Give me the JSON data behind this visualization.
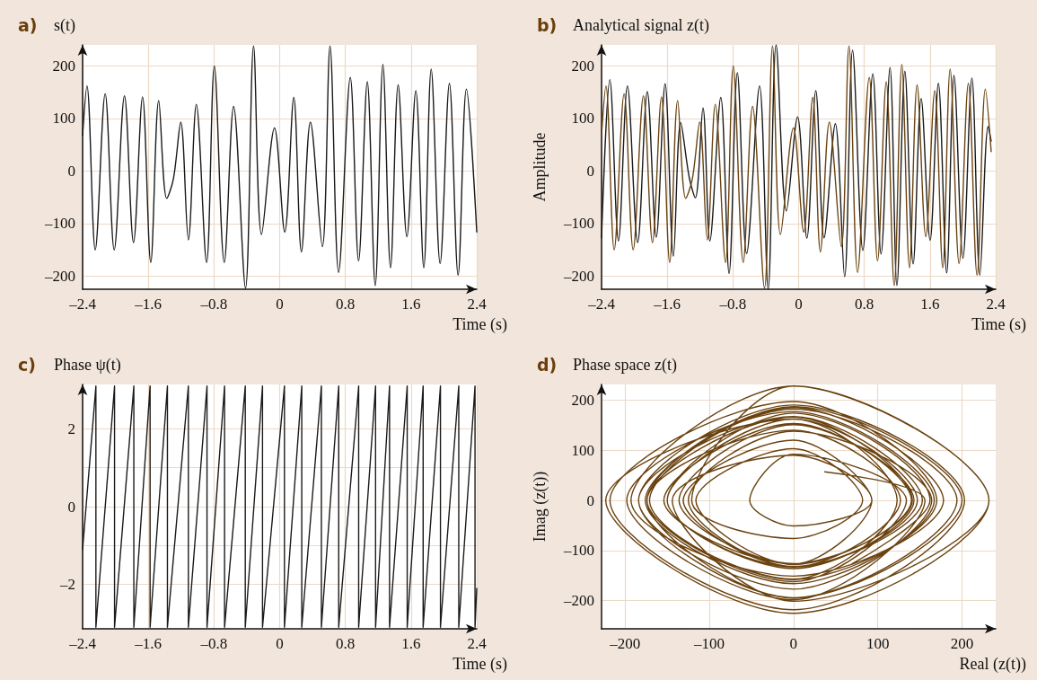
{
  "chart_data": [
    {
      "type": "line",
      "title": "s(t)",
      "annotations": [
        "a)"
      ],
      "xlabel": "Time (s)",
      "grid": true,
      "marker": "none",
      "line_style": "solid",
      "xlim": [
        -2.4,
        2.4
      ],
      "xticks": [
        {
          "value": -2.4,
          "label": "–2.4"
        },
        {
          "value": -1.6,
          "label": "–1.6"
        },
        {
          "value": -0.8,
          "label": "–0.8"
        },
        0,
        0.8,
        1.6,
        2.4
      ],
      "ylim": [
        -225,
        240
      ],
      "yticks": [
        {
          "value": -200,
          "label": "–200"
        },
        {
          "value": -100,
          "label": "–100"
        },
        0,
        100,
        200
      ],
      "series": [
        {
          "color": "#1a1a1a",
          "x": [
            -2.4,
            -2.347,
            -2.246,
            -2.125,
            -2.015,
            -1.89,
            -1.78,
            -1.67,
            -1.57,
            -1.473,
            -1.375,
            -1.294,
            -1.205,
            -1.112,
            -1.015,
            -0.89,
            -0.796,
            -0.675,
            -0.561,
            -0.416,
            -0.318,
            -0.221,
            -0.063,
            0.062,
            0.172,
            0.265,
            0.374,
            0.52,
            0.613,
            0.718,
            0.86,
            0.961,
            1.067,
            1.164,
            1.257,
            1.35,
            1.443,
            1.549,
            1.658,
            1.755,
            1.845,
            1.954,
            2.067,
            2.173,
            2.274,
            2.4
          ],
          "values": [
            68,
            162,
            -150,
            147,
            -150,
            143,
            -136,
            141,
            -174,
            134,
            -52,
            -15,
            93,
            -131,
            127,
            -174,
            200,
            -174,
            123,
            -223,
            238,
            -121,
            82,
            -116,
            140,
            -154,
            93,
            -144,
            238,
            -193,
            178,
            -171,
            170,
            -218,
            203,
            -184,
            164,
            -125,
            153,
            -184,
            194,
            -176,
            167,
            -198,
            156,
            -116
          ]
        }
      ]
    },
    {
      "type": "line",
      "title": "Analytical signal z(t)",
      "annotations": [
        "b)"
      ],
      "xlabel": "Time (s)",
      "ylabel": "Amplitude",
      "grid": true,
      "marker": "none",
      "line_style": "solid",
      "xlim": [
        -2.4,
        2.4
      ],
      "xticks": [
        {
          "value": -2.4,
          "label": "–2.4"
        },
        {
          "value": -1.6,
          "label": "–1.6"
        },
        {
          "value": -0.8,
          "label": "–0.8"
        },
        0,
        0.8,
        1.6,
        2.4
      ],
      "ylim": [
        -225,
        240
      ],
      "yticks": [
        {
          "value": -200,
          "label": "–200"
        },
        {
          "value": -100,
          "label": "–100"
        },
        0,
        100,
        200
      ],
      "series": [
        {
          "color": "#1a1a1a",
          "x": [
            -2.4,
            -2.299,
            -2.194,
            -2.085,
            -1.96,
            -1.843,
            -1.734,
            -1.626,
            -1.525,
            -1.436,
            -1.331,
            -1.258,
            -1.165,
            -1.081,
            -0.948,
            -0.847,
            -0.746,
            -0.633,
            -0.476,
            -0.371,
            -0.274,
            -0.149,
            -0.013,
            0.1,
            0.209,
            0.31,
            0.447,
            0.56,
            0.657,
            0.782,
            0.903,
            1.004,
            1.113,
            1.197,
            1.294,
            1.395,
            1.492,
            1.601,
            1.702,
            1.803,
            1.892,
            2.001,
            2.11,
            2.207,
            2.308,
            2.345
          ],
          "values": [
            -127,
            174,
            -133,
            162,
            -136,
            151,
            -126,
            166,
            -162,
            92,
            -13,
            -51,
            120,
            -133,
            140,
            -195,
            187,
            -157,
            162,
            -225,
            240,
            -76,
            103,
            -128,
            153,
            -127,
            90,
            -201,
            230,
            -151,
            185,
            -158,
            197,
            -218,
            190,
            -177,
            138,
            -132,
            167,
            -194,
            182,
            -166,
            177,
            -198,
            85,
            57
          ]
        },
        {
          "color": "#6b4310",
          "x": [
            -2.4,
            -2.347,
            -2.246,
            -2.125,
            -2.015,
            -1.89,
            -1.78,
            -1.67,
            -1.57,
            -1.473,
            -1.375,
            -1.294,
            -1.205,
            -1.112,
            -1.015,
            -0.89,
            -0.796,
            -0.675,
            -0.561,
            -0.416,
            -0.318,
            -0.221,
            -0.063,
            0.062,
            0.172,
            0.265,
            0.374,
            0.52,
            0.613,
            0.718,
            0.86,
            0.961,
            1.067,
            1.164,
            1.257,
            1.35,
            1.443,
            1.549,
            1.658,
            1.755,
            1.845,
            1.954,
            2.067,
            2.173,
            2.274,
            2.345
          ],
          "values": [
            69,
            162,
            -150,
            147,
            -150,
            143,
            -136,
            141,
            -174,
            134,
            -52,
            -15,
            93,
            -131,
            127,
            -174,
            200,
            -174,
            123,
            -223,
            238,
            -121,
            82,
            -116,
            140,
            -154,
            93,
            -144,
            238,
            -193,
            178,
            -171,
            170,
            -218,
            203,
            -184,
            164,
            -125,
            153,
            -184,
            194,
            -176,
            167,
            -198,
            156,
            37
          ]
        }
      ]
    },
    {
      "type": "line",
      "title": "Phase ψ(t)",
      "annotations": [
        "c)"
      ],
      "xlabel": "Time (s)",
      "grid": true,
      "marker": "none",
      "line_style": "solid",
      "xlim": [
        -2.4,
        2.4
      ],
      "xticks": [
        {
          "value": -2.4,
          "label": "–2.4"
        },
        {
          "value": -1.6,
          "label": "–1.6"
        },
        {
          "value": -0.8,
          "label": "–0.8"
        },
        0,
        0.8,
        1.6,
        2.4
      ],
      "ylim": [
        -3.14,
        3.14
      ],
      "yticks": [
        {
          "value": -2,
          "label": "–2"
        },
        {
          "value": -1,
          "label": null
        },
        0,
        {
          "value": 1,
          "label": null
        },
        2
      ],
      "series": [
        {
          "color": "#1a1a1a",
          "x": [
            -2.4,
            -2.238,
            -2.238,
            -2.011,
            -2.011,
            -1.776,
            -1.776,
            -1.578,
            -1.578,
            -1.367,
            -1.367,
            -1.112,
            -1.112,
            -0.885,
            -0.885,
            -0.671,
            -0.671,
            -0.419,
            -0.419,
            -0.209,
            -0.209,
            0.058,
            0.058,
            0.269,
            0.269,
            0.508,
            0.508,
            0.719,
            0.719,
            0.962,
            0.962,
            1.168,
            1.168,
            1.338,
            1.338,
            1.553,
            1.553,
            1.747,
            1.747,
            1.958,
            1.958,
            2.181,
            2.181,
            2.379,
            2.379,
            2.4
          ],
          "values": [
            -1.1,
            3.1,
            -3.1,
            3.1,
            -3.1,
            3.1,
            -3.1,
            3.1,
            -3.1,
            3.1,
            -3.1,
            3.1,
            -3.1,
            3.1,
            -3.1,
            3.1,
            -3.1,
            3.1,
            -3.1,
            3.1,
            -3.1,
            3.1,
            -3.1,
            3.1,
            -3.1,
            3.1,
            -3.1,
            3.1,
            -3.1,
            3.1,
            -3.1,
            3.1,
            -3.1,
            3.1,
            -3.1,
            3.1,
            -3.1,
            3.1,
            -3.1,
            3.1,
            -3.1,
            3.1,
            -3.1,
            3.1,
            -3.1,
            -2.1
          ]
        }
      ]
    },
    {
      "type": "line",
      "title": "Phase space z(t)",
      "annotations": [
        "d)"
      ],
      "xlabel": "Real (z(t))",
      "ylabel": "Imag (z(t))",
      "grid": true,
      "marker": "none",
      "line_style": "solid",
      "xlim": [
        -228,
        240
      ],
      "xticks": [
        {
          "value": -200,
          "label": "–200"
        },
        {
          "value": -100,
          "label": "–100"
        },
        0,
        100,
        200
      ],
      "ylim": [
        -256,
        231
      ],
      "yticks": [
        {
          "value": -200,
          "label": "–200"
        },
        {
          "value": -100,
          "label": "–100"
        },
        0,
        100,
        200
      ],
      "series": [
        {
          "color": "#6b4310",
          "x": [
            69,
            162,
            0,
            -150,
            0,
            147,
            0,
            -150,
            0,
            143,
            0,
            -136,
            0,
            141,
            0,
            -174,
            0,
            134,
            0,
            -52,
            0,
            93,
            0,
            -131,
            0,
            127,
            0,
            -174,
            0,
            200,
            0,
            -174,
            0,
            123,
            0,
            -223,
            0,
            232,
            0,
            -121,
            0,
            82,
            0,
            -116,
            0,
            140,
            0,
            -154,
            0,
            93,
            0,
            -144,
            0,
            232,
            0,
            -193,
            0,
            178,
            0,
            -171,
            0,
            170,
            0,
            -218,
            0,
            203,
            0,
            -184,
            0,
            164,
            0,
            -125,
            0,
            153,
            0,
            -184,
            0,
            194,
            0,
            -176,
            0,
            167,
            0,
            -198,
            0,
            156,
            37
          ],
          "values": [
            -127,
            0,
            174,
            0,
            -133,
            0,
            162,
            0,
            -136,
            0,
            151,
            0,
            -126,
            0,
            166,
            0,
            -162,
            0,
            92,
            0,
            -51,
            0,
            120,
            0,
            -133,
            0,
            140,
            0,
            -195,
            0,
            187,
            0,
            -157,
            0,
            162,
            0,
            -225,
            0,
            228,
            0,
            -76,
            0,
            103,
            0,
            -128,
            0,
            153,
            0,
            -127,
            0,
            90,
            0,
            -201,
            0,
            228,
            0,
            -151,
            0,
            185,
            0,
            -158,
            0,
            197,
            0,
            -218,
            0,
            190,
            0,
            -177,
            0,
            138,
            0,
            -132,
            0,
            167,
            0,
            -194,
            0,
            182,
            0,
            -166,
            0,
            177,
            0,
            -198,
            0,
            57
          ]
        }
      ]
    }
  ]
}
